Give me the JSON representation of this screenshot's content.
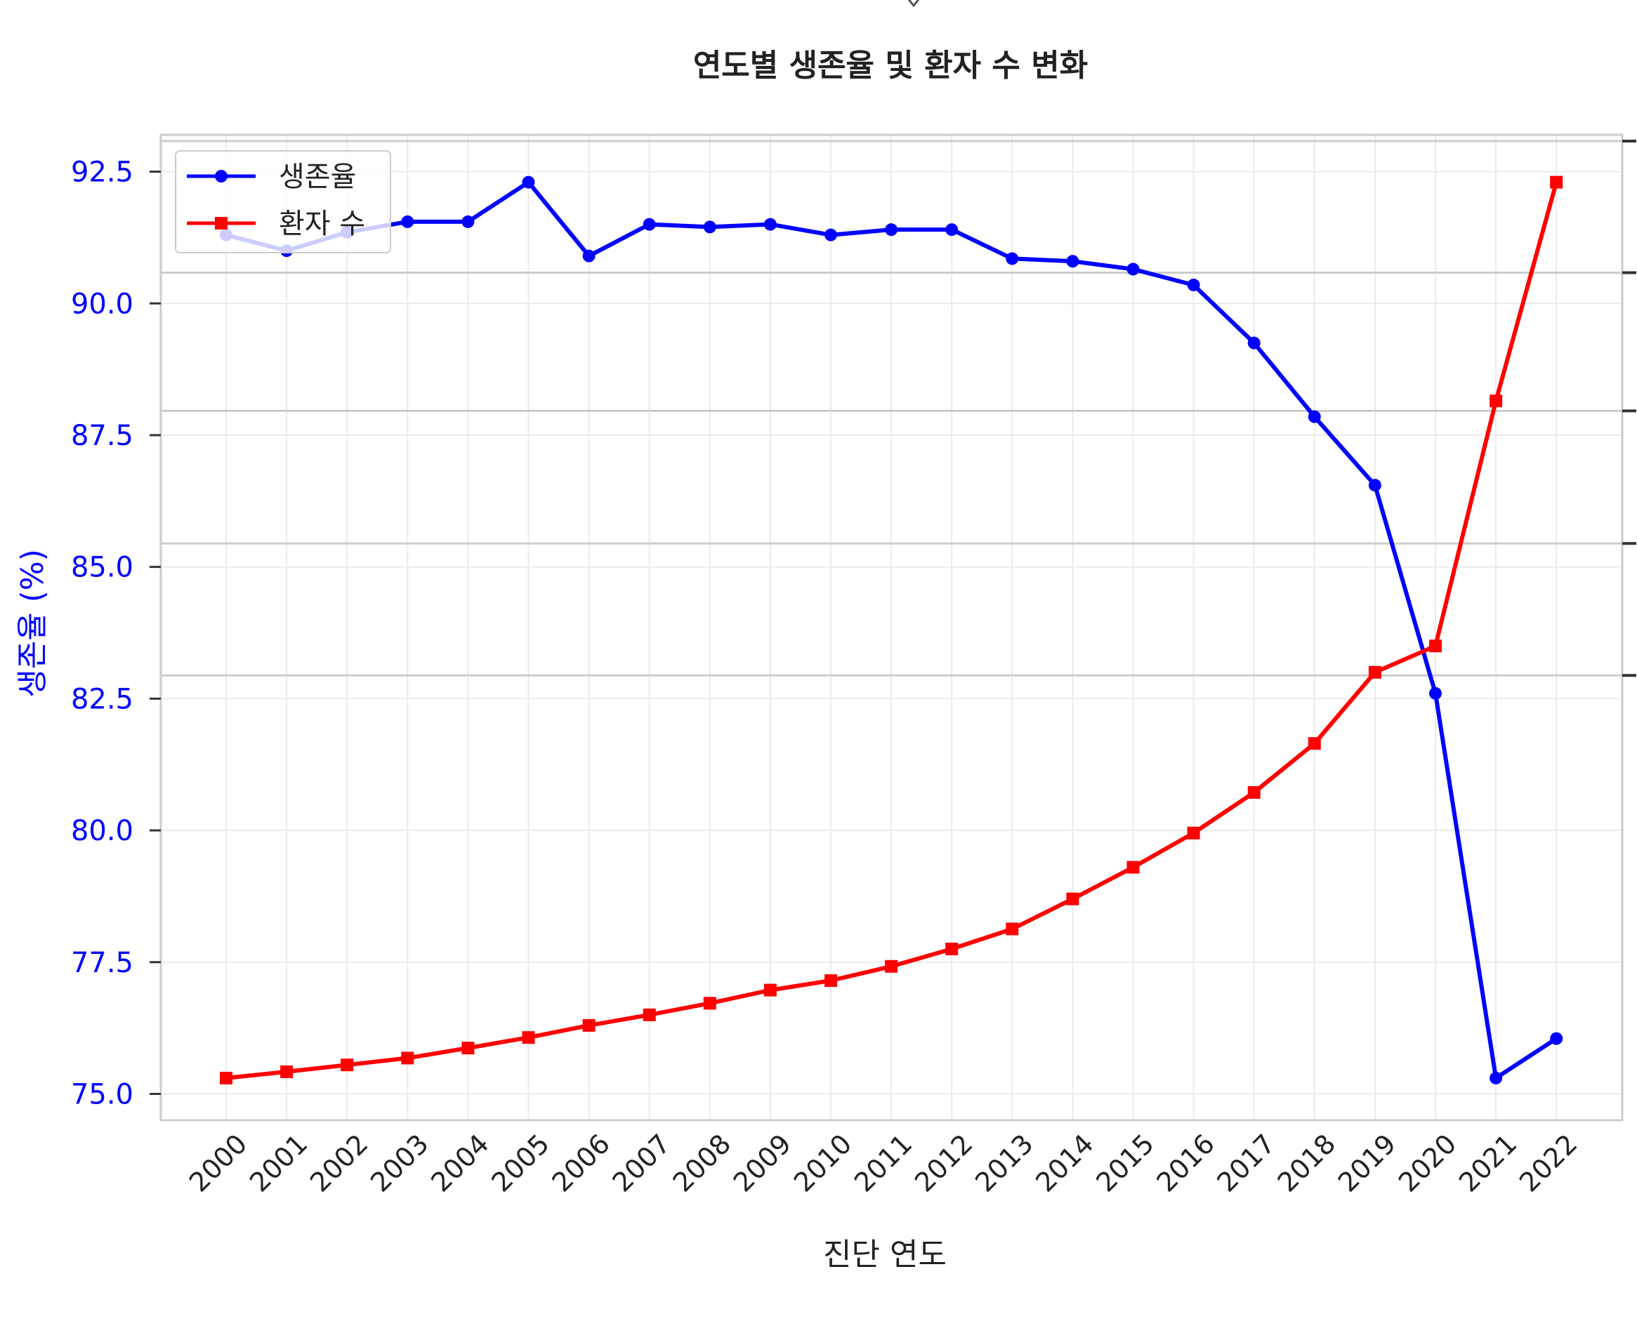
{
  "chart_data": {
    "type": "line",
    "title": "연도별 생존율 및 환자 수 변화",
    "xlabel": "진단 연도",
    "ylabel": "생존율 (%)",
    "ylim": [
      74.5,
      93.2
    ],
    "yticks": [
      "75.0",
      "77.5",
      "80.0",
      "82.5",
      "85.0",
      "87.5",
      "90.0",
      "92.5"
    ],
    "categories": [
      "2000",
      "2001",
      "2002",
      "2003",
      "2004",
      "2005",
      "2006",
      "2007",
      "2008",
      "2009",
      "2010",
      "2011",
      "2012",
      "2013",
      "2014",
      "2015",
      "2016",
      "2017",
      "2018",
      "2019",
      "2020",
      "2021",
      "2022"
    ],
    "grid": true,
    "legend_position": "upper-left",
    "series": [
      {
        "name": "생존율",
        "axis": "left",
        "color": "#0000ff",
        "marker": "circle",
        "values": [
          91.3,
          91.0,
          91.35,
          91.55,
          91.55,
          92.3,
          90.9,
          91.5,
          91.45,
          91.5,
          91.3,
          91.4,
          91.4,
          90.85,
          90.8,
          90.65,
          90.35,
          89.25,
          87.85,
          86.55,
          82.6,
          75.3,
          76.05
        ]
      },
      {
        "name": "환자 수",
        "axis": "right",
        "color": "#ff0000",
        "marker": "square",
        "values_in_left_axis_units": [
          75.3,
          75.42,
          75.55,
          75.68,
          75.87,
          76.07,
          76.3,
          76.5,
          76.72,
          76.97,
          77.15,
          77.42,
          77.75,
          78.13,
          78.7,
          79.3,
          79.95,
          80.72,
          81.65,
          83.0,
          83.5,
          88.15,
          92.3
        ]
      }
    ]
  }
}
